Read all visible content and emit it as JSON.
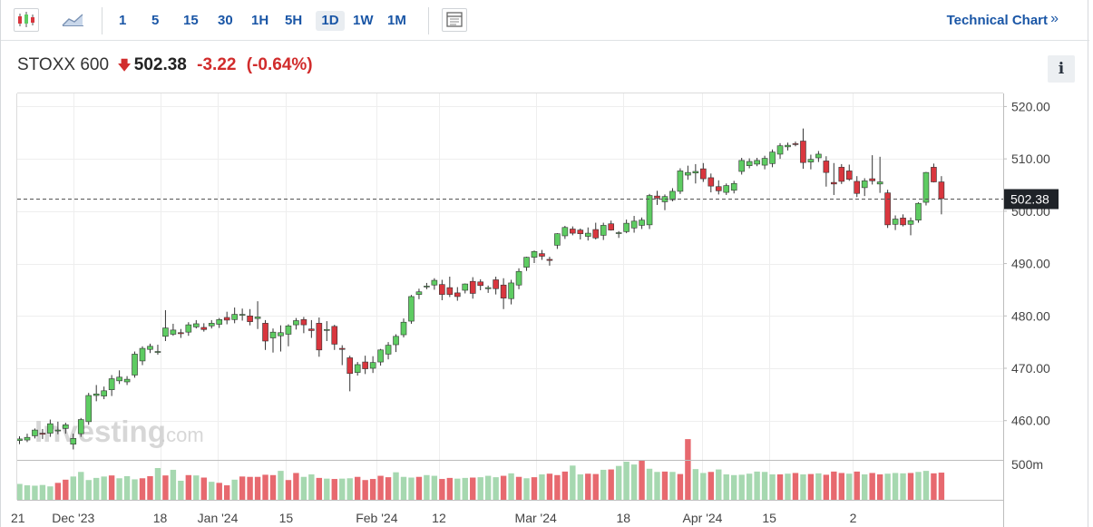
{
  "toolbar": {
    "intervals": [
      "1",
      "5",
      "15",
      "30",
      "1H",
      "5H",
      "1D",
      "1W",
      "1M"
    ],
    "active_interval": "1D",
    "technical_chart_label": "Technical Chart",
    "technical_chart_arrows": "»",
    "icons": [
      "candlestick-icon",
      "area-chart-icon",
      "layout-icon"
    ]
  },
  "quote": {
    "name": "STOXX 600",
    "direction_icon": "down-arrow-icon",
    "price": "502.38",
    "change": "-3.22",
    "change_pct": "(-0.64%)",
    "info_label": "i"
  },
  "colors": {
    "up": "#5ecc62",
    "down": "#d9363e",
    "vol_up": "#a6d8b0",
    "vol_down": "#e7696f",
    "accent": "#1a56a6"
  },
  "watermark": {
    "brand": "Investing",
    "suffix": ".com"
  },
  "chart_data": {
    "type": "candlestick",
    "title": "STOXX 600",
    "ylim": [
      452.5,
      522.5
    ],
    "y_ticks": [
      "520.00",
      "510.00",
      "500.00",
      "490.00",
      "480.00",
      "470.00",
      "460.00"
    ],
    "y_tick_values": [
      520,
      510,
      500,
      490,
      480,
      470,
      460
    ],
    "last_price_label": "502.38",
    "last_price": 502.38,
    "volume_label": "500m",
    "volume_tick_value": 500,
    "volume_max": 540,
    "x_labels": [
      {
        "label": "21",
        "index": -0.2
      },
      {
        "label": "Dec '23",
        "index": 7
      },
      {
        "label": "18",
        "index": 18.3
      },
      {
        "label": "Jan '24",
        "index": 25.8
      },
      {
        "label": "15",
        "index": 34.7
      },
      {
        "label": "Feb '24",
        "index": 46.5
      },
      {
        "label": "12",
        "index": 54.6
      },
      {
        "label": "Mar '24",
        "index": 67.2
      },
      {
        "label": "18",
        "index": 78.6
      },
      {
        "label": "Apr '24",
        "index": 88.9
      },
      {
        "label": "15",
        "index": 97.6
      },
      {
        "label": "2",
        "index": 108.5
      }
    ],
    "ohlc": [
      [
        456.2,
        457,
        455.5,
        456.5
      ],
      [
        456.3,
        457.5,
        455.9,
        456.8
      ],
      [
        457.1,
        458.5,
        456.6,
        458.2
      ],
      [
        457.6,
        458.4,
        456.5,
        457.4
      ],
      [
        457.6,
        460.2,
        456.9,
        459.4
      ],
      [
        458.1,
        459.8,
        457.4,
        458.2
      ],
      [
        458.5,
        459.6,
        457.5,
        459.2
      ],
      [
        455.5,
        457.5,
        454.5,
        456.6
      ],
      [
        457.5,
        460.5,
        456.9,
        460.2
      ],
      [
        459.8,
        465.3,
        459.2,
        464.8
      ],
      [
        464.8,
        466.8,
        463.7,
        465.1
      ],
      [
        464.7,
        466.5,
        464.1,
        465.7
      ],
      [
        465.9,
        468.7,
        464.7,
        468
      ],
      [
        467.6,
        469.6,
        467,
        468.3
      ],
      [
        467.4,
        468.5,
        466.8,
        467.9
      ],
      [
        468.7,
        473.2,
        468.2,
        472.7
      ],
      [
        471.4,
        474.2,
        470.6,
        473.8
      ],
      [
        473.6,
        474.7,
        472.9,
        474.2
      ],
      [
        473.2,
        474.5,
        472.6,
        473.2
      ],
      [
        476.1,
        481.1,
        475.2,
        477.7
      ],
      [
        476.5,
        478.5,
        476.2,
        477.3
      ],
      [
        476.8,
        477.5,
        475.8,
        476.6
      ],
      [
        476.9,
        478.8,
        476.2,
        478.3
      ],
      [
        477.9,
        479.2,
        477.6,
        478.5
      ],
      [
        477.8,
        478.6,
        477,
        477.4
      ],
      [
        478.1,
        479.2,
        477.6,
        478.6
      ],
      [
        478.4,
        479.6,
        477.7,
        479.3
      ],
      [
        479.7,
        480.8,
        478.4,
        479.2
      ],
      [
        479.3,
        481.6,
        478.6,
        480.3
      ],
      [
        480.2,
        481.4,
        479.1,
        480.3
      ],
      [
        480,
        481.3,
        478.2,
        478.9
      ],
      [
        479.5,
        482.8,
        477.5,
        479.8
      ],
      [
        478.6,
        479.2,
        473.5,
        475.2
      ],
      [
        475.8,
        477.6,
        473,
        476.9
      ],
      [
        476.2,
        478.2,
        473.2,
        476.8
      ],
      [
        476.5,
        478.4,
        474.2,
        478.1
      ],
      [
        478.3,
        479.6,
        477.4,
        479.1
      ],
      [
        479.3,
        479.8,
        476.7,
        478.3
      ],
      [
        477.5,
        479.2,
        475.8,
        477.2
      ],
      [
        478.6,
        479.7,
        472.2,
        473.5
      ],
      [
        477.3,
        479,
        475.2,
        477.4
      ],
      [
        478,
        478.3,
        473.5,
        474.6
      ],
      [
        473.8,
        474.4,
        470.6,
        473.6
      ],
      [
        472,
        472.4,
        465.6,
        469
      ],
      [
        469.2,
        471.2,
        468.6,
        470.7
      ],
      [
        471.2,
        472.4,
        468.9,
        469.9
      ],
      [
        470,
        472.3,
        469.1,
        471.1
      ],
      [
        471.2,
        473.7,
        470.5,
        473.5
      ],
      [
        472.7,
        475,
        471.7,
        474.4
      ],
      [
        474.5,
        476.5,
        473.1,
        476.1
      ],
      [
        476.4,
        479.5,
        475.9,
        478.8
      ],
      [
        479,
        484,
        478.5,
        483.7
      ],
      [
        484.1,
        485.2,
        483.2,
        484.6
      ],
      [
        485.6,
        486.3,
        485.1,
        485.7
      ],
      [
        485.9,
        487.2,
        485,
        486.8
      ],
      [
        486,
        486.9,
        483,
        484.1
      ],
      [
        485.4,
        487.5,
        483.6,
        484.1
      ],
      [
        484.4,
        485.5,
        482.9,
        483.7
      ],
      [
        484.9,
        486.2,
        484.3,
        486.1
      ],
      [
        486.6,
        487.4,
        483.3,
        484.3
      ],
      [
        486.5,
        487,
        484.9,
        485.8
      ],
      [
        485.2,
        485.8,
        484.4,
        485.4
      ],
      [
        486.9,
        487.5,
        484.1,
        485.2
      ],
      [
        485.9,
        487.2,
        481.3,
        483.4
      ],
      [
        483.3,
        486.9,
        482.2,
        486.3
      ],
      [
        485.9,
        489.1,
        485.1,
        488.5
      ],
      [
        489.3,
        491.3,
        488.6,
        491.2
      ],
      [
        491.2,
        492.5,
        490.1,
        492.3
      ],
      [
        491.9,
        492.6,
        490.7,
        491.4
      ],
      [
        490.8,
        491.3,
        489.6,
        490.6
      ],
      [
        493.5,
        495.8,
        492.8,
        495.7
      ],
      [
        495.3,
        497.2,
        494.7,
        496.9
      ],
      [
        496.6,
        497.1,
        495.4,
        495.8
      ],
      [
        496.4,
        496.7,
        494.6,
        495.7
      ],
      [
        495.2,
        496.9,
        494.4,
        495.8
      ],
      [
        496.5,
        497.8,
        494.6,
        494.9
      ],
      [
        495.4,
        497.8,
        494.5,
        497.3
      ],
      [
        497.6,
        498.2,
        496.3,
        496.4
      ],
      [
        495.8,
        496.2,
        494.9,
        495.9
      ],
      [
        496.1,
        498.4,
        495.8,
        497.7
      ],
      [
        496.8,
        499.1,
        495.9,
        498.1
      ],
      [
        497.3,
        498.8,
        496.6,
        498.3
      ],
      [
        497.4,
        503.3,
        496.6,
        503
      ],
      [
        502.9,
        503.9,
        501.2,
        502.5
      ],
      [
        501.8,
        503.2,
        500.2,
        502.8
      ],
      [
        502.2,
        504.4,
        501.9,
        503.8
      ],
      [
        503.8,
        508.2,
        503.3,
        507.7
      ],
      [
        506.9,
        508.7,
        506,
        507.4
      ],
      [
        507.3,
        509,
        505.3,
        507.6
      ],
      [
        508.1,
        509.2,
        505.6,
        506.2
      ],
      [
        506.4,
        507.2,
        503.6,
        504.8
      ],
      [
        504.7,
        505.9,
        503.2,
        503.9
      ],
      [
        503.6,
        505.3,
        503.1,
        504.9
      ],
      [
        504,
        505.8,
        503.4,
        505.3
      ],
      [
        507.6,
        510.2,
        507,
        509.7
      ],
      [
        508.7,
        510.1,
        508.2,
        509.5
      ],
      [
        509,
        510.2,
        508.6,
        509.7
      ],
      [
        508.8,
        510.6,
        508,
        510.1
      ],
      [
        509.1,
        511.8,
        508.4,
        511.3
      ],
      [
        510.9,
        513,
        510,
        512.5
      ],
      [
        512.3,
        513.1,
        511.6,
        512.6
      ],
      [
        512.9,
        513.3,
        512.4,
        512.8
      ],
      [
        513.4,
        515.8,
        508.1,
        509.3
      ],
      [
        509.4,
        510.8,
        508,
        509.9
      ],
      [
        510.2,
        511.5,
        509.4,
        510.9
      ],
      [
        509.6,
        510.5,
        504.7,
        507.4
      ],
      [
        505.5,
        509.2,
        503.1,
        505.2
      ],
      [
        508.4,
        509,
        505.2,
        505.7
      ],
      [
        507.7,
        508.9,
        505.8,
        506.1
      ],
      [
        505.7,
        506.7,
        502.7,
        503.4
      ],
      [
        504.5,
        506.3,
        502.9,
        505.8
      ],
      [
        506.2,
        510.7,
        505.1,
        505.8
      ],
      [
        505.2,
        510.4,
        503.5,
        505.6
      ],
      [
        503.5,
        504.1,
        496.8,
        497.4
      ],
      [
        497.5,
        499.2,
        496.4,
        498.5
      ],
      [
        498.7,
        499.4,
        497.1,
        497.4
      ],
      [
        497.5,
        498.8,
        495.4,
        498.2
      ],
      [
        498.3,
        501.7,
        497.8,
        501.5
      ],
      [
        501.7,
        507.5,
        501.1,
        507.4
      ],
      [
        508.4,
        509.1,
        505.5,
        505.6
      ],
      [
        505.6,
        506.7,
        499.4,
        502.4
      ]
    ],
    "volumes": [
      [
        225,
        1
      ],
      [
        205,
        1
      ],
      [
        200,
        1
      ],
      [
        210,
        1
      ],
      [
        190,
        1
      ],
      [
        240,
        0
      ],
      [
        285,
        0
      ],
      [
        330,
        1
      ],
      [
        395,
        1
      ],
      [
        280,
        1
      ],
      [
        310,
        1
      ],
      [
        330,
        1
      ],
      [
        345,
        0
      ],
      [
        305,
        1
      ],
      [
        335,
        1
      ],
      [
        290,
        1
      ],
      [
        305,
        0
      ],
      [
        335,
        0
      ],
      [
        450,
        1
      ],
      [
        345,
        0
      ],
      [
        425,
        1
      ],
      [
        270,
        1
      ],
      [
        350,
        0
      ],
      [
        345,
        1
      ],
      [
        315,
        0
      ],
      [
        255,
        1
      ],
      [
        240,
        0
      ],
      [
        205,
        0
      ],
      [
        285,
        1
      ],
      [
        330,
        0
      ],
      [
        325,
        0
      ],
      [
        325,
        0
      ],
      [
        355,
        0
      ],
      [
        350,
        0
      ],
      [
        410,
        1
      ],
      [
        280,
        0
      ],
      [
        380,
        0
      ],
      [
        325,
        1
      ],
      [
        360,
        1
      ],
      [
        310,
        0
      ],
      [
        300,
        1
      ],
      [
        295,
        0
      ],
      [
        300,
        1
      ],
      [
        305,
        1
      ],
      [
        325,
        0
      ],
      [
        280,
        0
      ],
      [
        295,
        0
      ],
      [
        340,
        0
      ],
      [
        320,
        0
      ],
      [
        390,
        1
      ],
      [
        325,
        1
      ],
      [
        315,
        1
      ],
      [
        325,
        0
      ],
      [
        350,
        1
      ],
      [
        340,
        1
      ],
      [
        295,
        0
      ],
      [
        310,
        0
      ],
      [
        300,
        1
      ],
      [
        310,
        1
      ],
      [
        315,
        0
      ],
      [
        320,
        1
      ],
      [
        340,
        1
      ],
      [
        320,
        1
      ],
      [
        340,
        0
      ],
      [
        375,
        1
      ],
      [
        325,
        0
      ],
      [
        305,
        1
      ],
      [
        320,
        0
      ],
      [
        360,
        1
      ],
      [
        370,
        0
      ],
      [
        350,
        0
      ],
      [
        400,
        0
      ],
      [
        485,
        1
      ],
      [
        360,
        1
      ],
      [
        370,
        0
      ],
      [
        365,
        0
      ],
      [
        425,
        1
      ],
      [
        430,
        0
      ],
      [
        480,
        1
      ],
      [
        540,
        1
      ],
      [
        500,
        1
      ],
      [
        560,
        0
      ],
      [
        440,
        1
      ],
      [
        395,
        1
      ],
      [
        400,
        0
      ],
      [
        395,
        1
      ],
      [
        365,
        0
      ],
      [
        860,
        0
      ],
      [
        435,
        1
      ],
      [
        380,
        1
      ],
      [
        395,
        0
      ],
      [
        430,
        1
      ],
      [
        360,
        1
      ],
      [
        350,
        1
      ],
      [
        355,
        1
      ],
      [
        370,
        1
      ],
      [
        400,
        1
      ],
      [
        395,
        1
      ],
      [
        360,
        1
      ],
      [
        360,
        0
      ],
      [
        370,
        1
      ],
      [
        380,
        0
      ],
      [
        360,
        1
      ],
      [
        365,
        0
      ],
      [
        375,
        1
      ],
      [
        355,
        0
      ],
      [
        400,
        0
      ],
      [
        380,
        0
      ],
      [
        370,
        1
      ],
      [
        400,
        0
      ],
      [
        360,
        1
      ],
      [
        380,
        0
      ],
      [
        360,
        0
      ],
      [
        370,
        1
      ],
      [
        380,
        1
      ],
      [
        375,
        1
      ],
      [
        380,
        0
      ],
      [
        395,
        1
      ],
      [
        410,
        1
      ],
      [
        375,
        0
      ],
      [
        385,
        0
      ]
    ]
  }
}
